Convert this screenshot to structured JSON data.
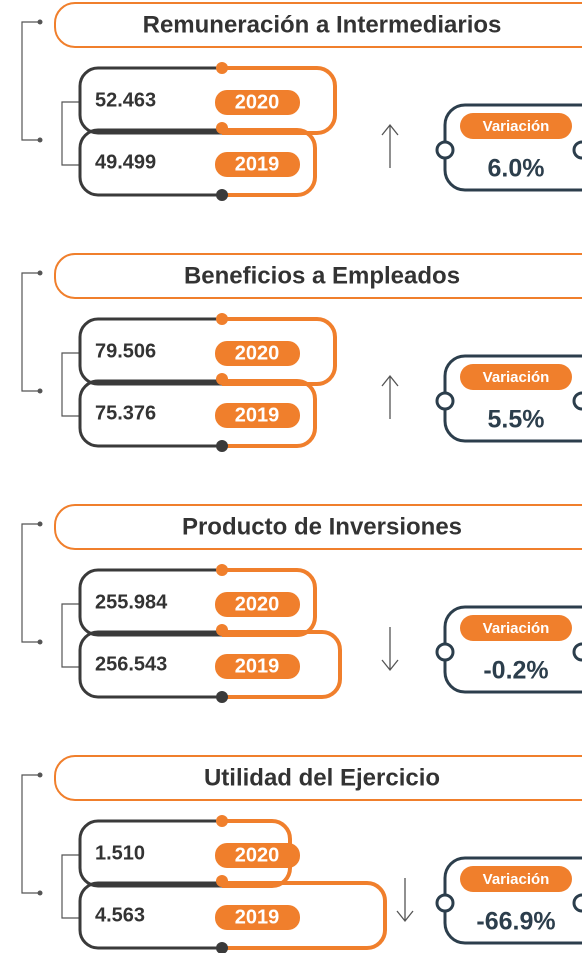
{
  "sections": [
    {
      "title": "Remuneración a Intermediarios",
      "items": [
        {
          "value": "52.463",
          "year": "2020"
        },
        {
          "value": "49.499",
          "year": "2019"
        }
      ],
      "arrow": "up",
      "variation": {
        "label": "Variación",
        "value": "6.0%"
      }
    },
    {
      "title": "Beneficios a Empleados",
      "items": [
        {
          "value": "79.506",
          "year": "2020"
        },
        {
          "value": "75.376",
          "year": "2019"
        }
      ],
      "arrow": "up",
      "variation": {
        "label": "Variación",
        "value": "5.5%"
      }
    },
    {
      "title": "Producto de Inversiones",
      "items": [
        {
          "value": "255.984",
          "year": "2020"
        },
        {
          "value": "256.543",
          "year": "2019"
        }
      ],
      "arrow": "down",
      "variation": {
        "label": "Variación",
        "value": "-0.2%"
      }
    },
    {
      "title": "Utilidad del Ejercicio",
      "items": [
        {
          "value": "1.510",
          "year": "2020"
        },
        {
          "value": "4.563",
          "year": "2019"
        }
      ],
      "arrow": "down",
      "variation": {
        "label": "Variación",
        "value": "-66.9%"
      }
    }
  ]
}
